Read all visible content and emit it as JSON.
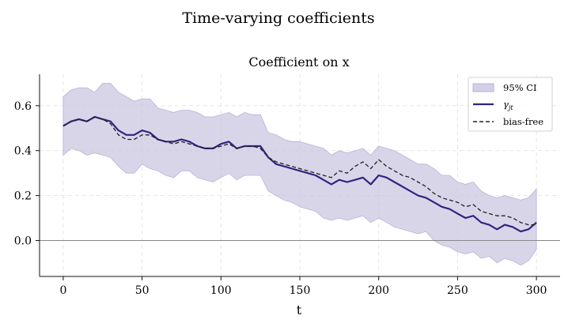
{
  "figure": {
    "suptitle": "Time-varying coefficients"
  },
  "chart_data": {
    "type": "line",
    "title": "Coefficient on x",
    "xlabel": "t",
    "ylabel": "",
    "xlim": [
      -15,
      315
    ],
    "ylim": [
      -0.16,
      0.74
    ],
    "xticks": [
      0,
      50,
      100,
      150,
      200,
      250,
      300
    ],
    "yticks": [
      0.0,
      0.2,
      0.4,
      0.6
    ],
    "xtick_labels": [
      "0",
      "50",
      "100",
      "150",
      "200",
      "250",
      "300"
    ],
    "ytick_labels": [
      "0.0",
      "0.2",
      "0.4",
      "0.6"
    ],
    "grid": true,
    "legend_position": "top-right",
    "zero_line": 0,
    "x": [
      0,
      5,
      10,
      15,
      20,
      25,
      30,
      35,
      40,
      45,
      50,
      55,
      60,
      65,
      70,
      75,
      80,
      85,
      90,
      95,
      100,
      105,
      110,
      115,
      120,
      125,
      130,
      135,
      140,
      145,
      150,
      155,
      160,
      165,
      170,
      175,
      180,
      185,
      190,
      195,
      200,
      205,
      210,
      215,
      220,
      225,
      230,
      235,
      240,
      245,
      250,
      255,
      260,
      265,
      270,
      275,
      280,
      285,
      290,
      295,
      300
    ],
    "series": [
      {
        "name": "95% CI",
        "kind": "band",
        "color": "#c9c3e0",
        "lower": [
          0.38,
          0.41,
          0.4,
          0.38,
          0.39,
          0.38,
          0.37,
          0.33,
          0.3,
          0.3,
          0.34,
          0.32,
          0.31,
          0.29,
          0.28,
          0.31,
          0.31,
          0.28,
          0.27,
          0.26,
          0.28,
          0.3,
          0.27,
          0.29,
          0.29,
          0.29,
          0.22,
          0.2,
          0.18,
          0.17,
          0.15,
          0.14,
          0.13,
          0.1,
          0.09,
          0.1,
          0.09,
          0.1,
          0.11,
          0.08,
          0.1,
          0.08,
          0.06,
          0.05,
          0.04,
          0.03,
          0.04,
          0.0,
          -0.02,
          -0.03,
          -0.05,
          -0.06,
          -0.05,
          -0.08,
          -0.07,
          -0.1,
          -0.08,
          -0.09,
          -0.11,
          -0.09,
          -0.04
        ],
        "upper": [
          0.64,
          0.67,
          0.68,
          0.68,
          0.66,
          0.7,
          0.7,
          0.66,
          0.64,
          0.62,
          0.63,
          0.63,
          0.59,
          0.58,
          0.57,
          0.58,
          0.58,
          0.57,
          0.55,
          0.55,
          0.56,
          0.57,
          0.55,
          0.57,
          0.56,
          0.56,
          0.48,
          0.47,
          0.45,
          0.44,
          0.44,
          0.43,
          0.42,
          0.41,
          0.38,
          0.4,
          0.39,
          0.4,
          0.41,
          0.38,
          0.42,
          0.41,
          0.4,
          0.38,
          0.36,
          0.34,
          0.34,
          0.32,
          0.29,
          0.29,
          0.26,
          0.25,
          0.26,
          0.22,
          0.2,
          0.19,
          0.2,
          0.19,
          0.18,
          0.19,
          0.23
        ]
      },
      {
        "name": "γ_jt",
        "kind": "line",
        "color": "#2f2480",
        "values": [
          0.51,
          0.53,
          0.54,
          0.53,
          0.55,
          0.54,
          0.53,
          0.49,
          0.47,
          0.47,
          0.49,
          0.48,
          0.45,
          0.44,
          0.44,
          0.45,
          0.44,
          0.42,
          0.41,
          0.41,
          0.43,
          0.44,
          0.41,
          0.42,
          0.42,
          0.42,
          0.37,
          0.34,
          0.33,
          0.32,
          0.31,
          0.3,
          0.29,
          0.27,
          0.25,
          0.27,
          0.26,
          0.27,
          0.28,
          0.25,
          0.29,
          0.28,
          0.26,
          0.24,
          0.22,
          0.2,
          0.19,
          0.17,
          0.15,
          0.14,
          0.12,
          0.1,
          0.11,
          0.08,
          0.07,
          0.05,
          0.07,
          0.06,
          0.04,
          0.05,
          0.08
        ]
      },
      {
        "name": "bias-free",
        "kind": "dashed",
        "color": "#222222",
        "values": [
          0.51,
          0.53,
          0.54,
          0.53,
          0.55,
          0.54,
          0.52,
          0.47,
          0.45,
          0.45,
          0.47,
          0.47,
          0.45,
          0.44,
          0.43,
          0.44,
          0.43,
          0.42,
          0.41,
          0.41,
          0.42,
          0.43,
          0.41,
          0.42,
          0.42,
          0.41,
          0.37,
          0.35,
          0.34,
          0.33,
          0.32,
          0.31,
          0.3,
          0.29,
          0.28,
          0.31,
          0.3,
          0.33,
          0.35,
          0.32,
          0.36,
          0.33,
          0.31,
          0.29,
          0.28,
          0.26,
          0.24,
          0.21,
          0.19,
          0.18,
          0.17,
          0.15,
          0.16,
          0.13,
          0.12,
          0.11,
          0.11,
          0.1,
          0.08,
          0.07,
          0.07
        ]
      }
    ]
  }
}
